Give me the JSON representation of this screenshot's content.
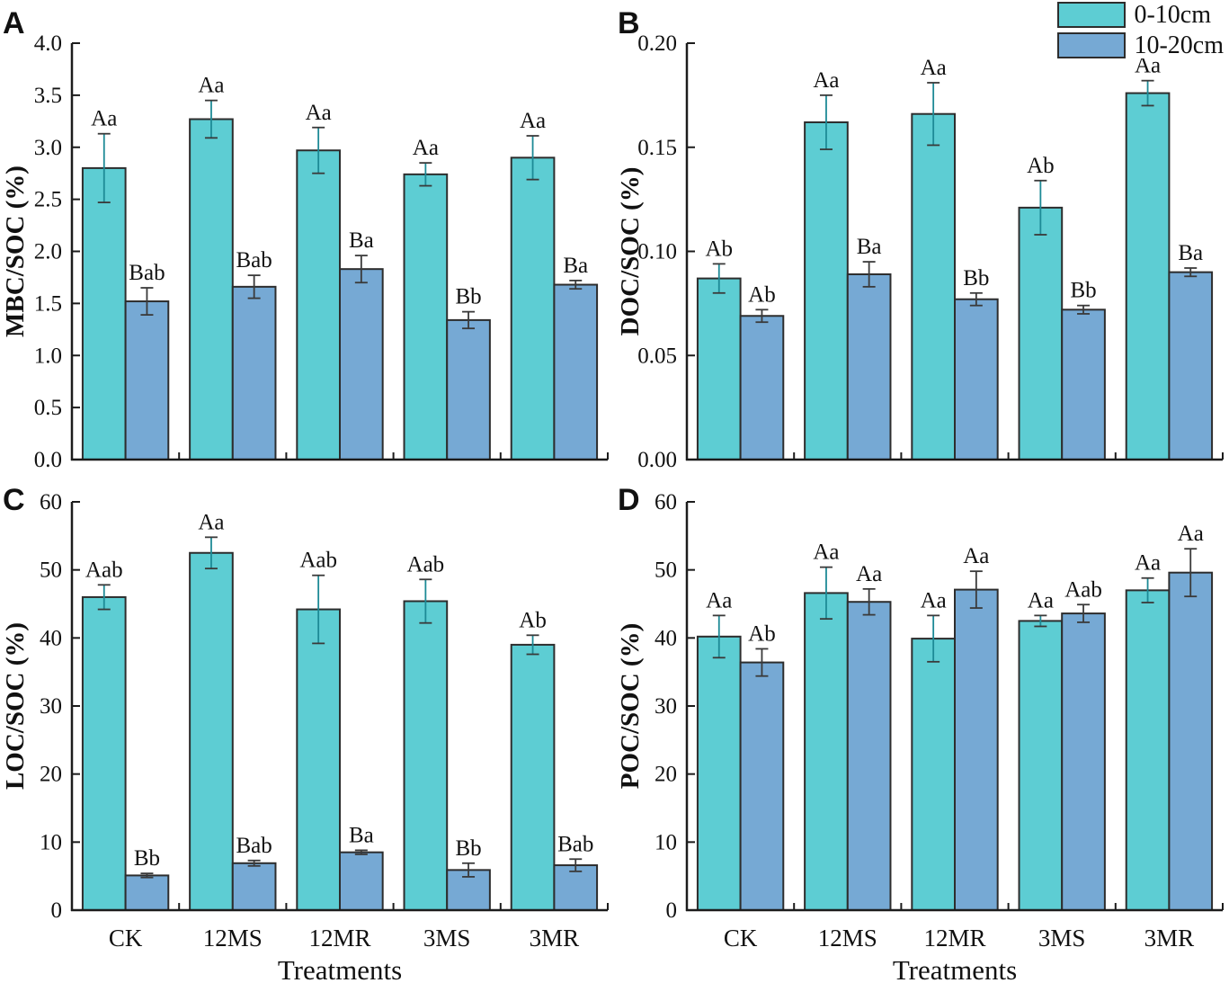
{
  "figure": {
    "background": "#ffffff",
    "xlabel": "Treatments",
    "categories": [
      "CK",
      "12MS",
      "12MR",
      "3MS",
      "3MR"
    ],
    "legend": {
      "items": [
        {
          "label": "0-10cm",
          "color": "#5dcdd3"
        },
        {
          "label": "10-20cm",
          "color": "#76a9d4"
        }
      ]
    },
    "colors": {
      "series1": "#5dcdd3",
      "series2": "#76a9d4",
      "bar_border": "#2d2d2d",
      "axis": "#1c1c1c",
      "error_cyan": "#1d8a96",
      "error_dark": "#3a3a3a",
      "text": "#111111"
    }
  },
  "chart_data": [
    {
      "panel": "A",
      "type": "bar",
      "row": "top",
      "ylabel": "MBC/SOC (%)",
      "ylim": [
        0,
        4.0
      ],
      "ytick_step": 0.5,
      "ytick_decimals": 1,
      "show_x_ticklabels": false,
      "grid": false,
      "categories": [
        "CK",
        "12MS",
        "12MR",
        "3MS",
        "3MR"
      ],
      "series": [
        {
          "name": "0-10cm",
          "values": [
            2.8,
            3.27,
            2.97,
            2.74,
            2.9
          ],
          "errors": [
            0.33,
            0.18,
            0.22,
            0.11,
            0.21
          ],
          "sig_labels": [
            "Aa",
            "Aa",
            "Aa",
            "Aa",
            "Aa"
          ]
        },
        {
          "name": "10-20cm",
          "values": [
            1.52,
            1.66,
            1.83,
            1.34,
            1.68
          ],
          "errors": [
            0.13,
            0.11,
            0.13,
            0.08,
            0.04
          ],
          "sig_labels": [
            "Bab",
            "Bab",
            "Ba",
            "Bb",
            "Ba"
          ]
        }
      ]
    },
    {
      "panel": "B",
      "type": "bar",
      "row": "top",
      "ylabel": "DOC/SOC (%)",
      "ylim": [
        0,
        0.2
      ],
      "ytick_step": 0.05,
      "ytick_decimals": 2,
      "show_x_ticklabels": false,
      "grid": false,
      "categories": [
        "CK",
        "12MS",
        "12MR",
        "3MS",
        "3MR"
      ],
      "series": [
        {
          "name": "0-10cm",
          "values": [
            0.087,
            0.162,
            0.166,
            0.121,
            0.176
          ],
          "errors": [
            0.007,
            0.013,
            0.015,
            0.013,
            0.006
          ],
          "sig_labels": [
            "Ab",
            "Aa",
            "Aa",
            "Ab",
            "Aa"
          ]
        },
        {
          "name": "10-20cm",
          "values": [
            0.069,
            0.089,
            0.077,
            0.072,
            0.09
          ],
          "errors": [
            0.003,
            0.006,
            0.003,
            0.002,
            0.002
          ],
          "sig_labels": [
            "Ab",
            "Ba",
            "Bb",
            "Bb",
            "Ba"
          ]
        }
      ]
    },
    {
      "panel": "C",
      "type": "bar",
      "row": "bottom",
      "ylabel": "LOC/SOC (%)",
      "ylim": [
        0,
        60
      ],
      "ytick_step": 10,
      "ytick_decimals": 0,
      "show_x_ticklabels": true,
      "grid": false,
      "categories": [
        "CK",
        "12MS",
        "12MR",
        "3MS",
        "3MR"
      ],
      "series": [
        {
          "name": "0-10cm",
          "values": [
            46.0,
            52.5,
            44.2,
            45.4,
            39.0
          ],
          "errors": [
            1.8,
            2.3,
            5.0,
            3.2,
            1.4
          ],
          "sig_labels": [
            "Aab",
            "Aa",
            "Aab",
            "Aab",
            "Ab"
          ]
        },
        {
          "name": "10-20cm",
          "values": [
            5.1,
            6.9,
            8.5,
            5.9,
            6.6
          ],
          "errors": [
            0.3,
            0.4,
            0.3,
            1.0,
            0.9
          ],
          "sig_labels": [
            "Bb",
            "Bab",
            "Ba",
            "Bb",
            "Bab"
          ]
        }
      ]
    },
    {
      "panel": "D",
      "type": "bar",
      "row": "bottom",
      "ylabel": "POC/SOC (%)",
      "ylim": [
        0,
        60
      ],
      "ytick_step": 10,
      "ytick_decimals": 0,
      "show_x_ticklabels": true,
      "grid": false,
      "categories": [
        "CK",
        "12MS",
        "12MR",
        "3MS",
        "3MR"
      ],
      "series": [
        {
          "name": "0-10cm",
          "values": [
            40.2,
            46.6,
            39.9,
            42.5,
            47.0
          ],
          "errors": [
            3.1,
            3.8,
            3.4,
            0.8,
            1.8
          ],
          "sig_labels": [
            "Aa",
            "Aa",
            "Aa",
            "Aa",
            "Aa"
          ]
        },
        {
          "name": "10-20cm",
          "values": [
            36.4,
            45.3,
            47.1,
            43.6,
            49.6
          ],
          "errors": [
            2.0,
            1.9,
            2.7,
            1.3,
            3.5
          ],
          "sig_labels": [
            "Ab",
            "Aa",
            "Aa",
            "Aab",
            "Aa"
          ]
        }
      ]
    }
  ]
}
